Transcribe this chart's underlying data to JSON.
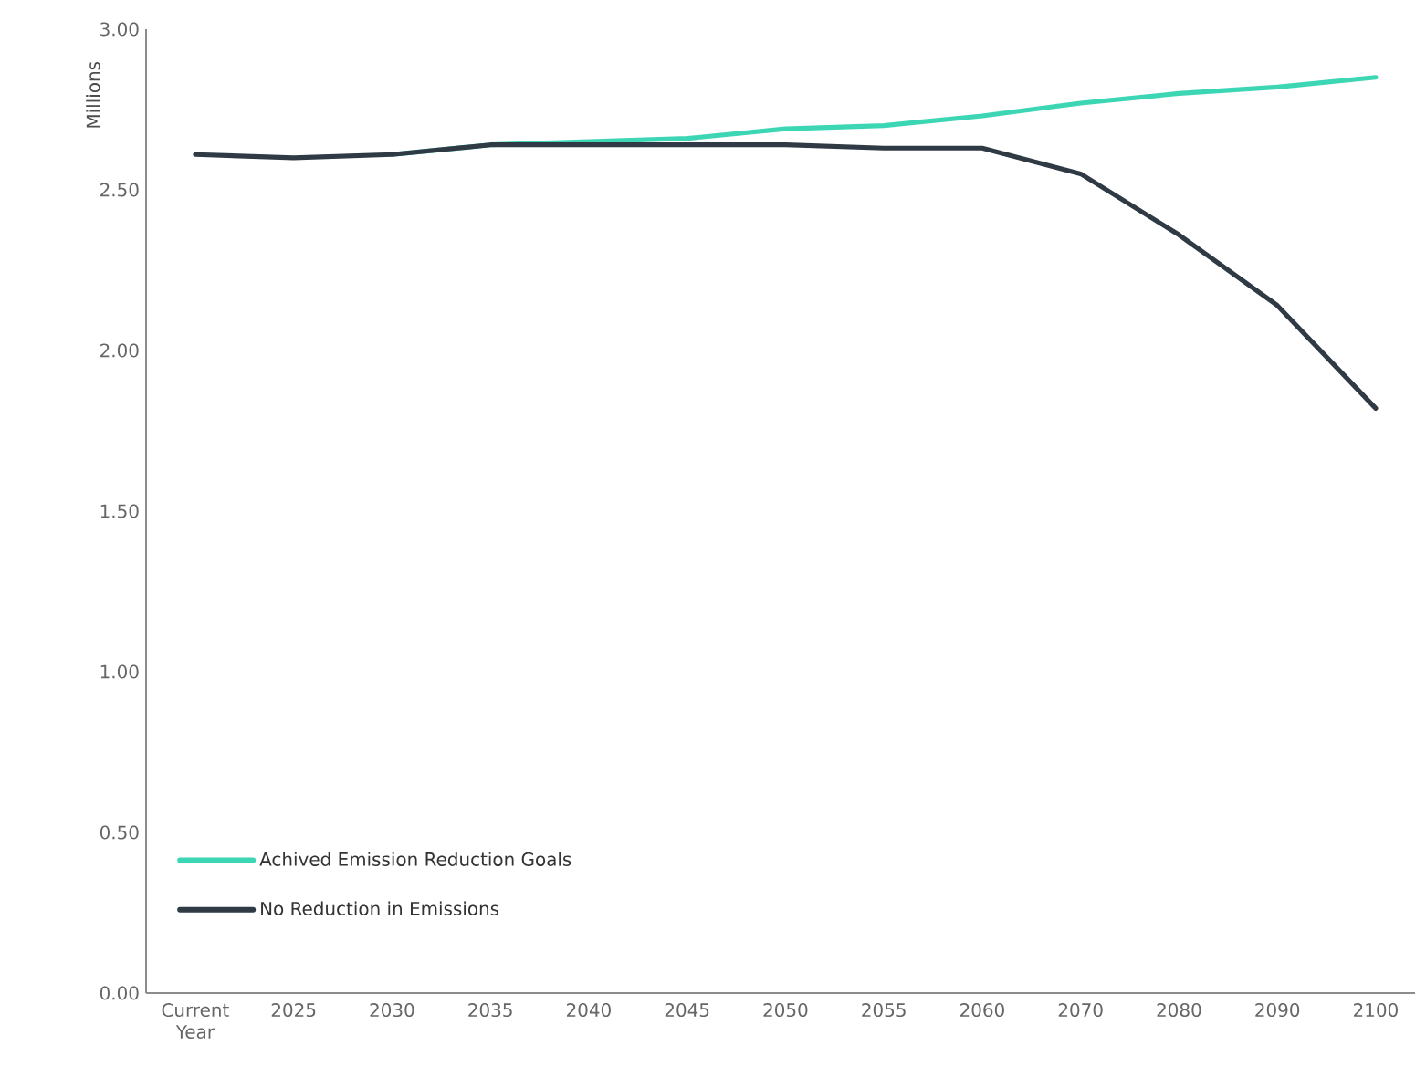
{
  "chart_data": {
    "type": "line",
    "ylabel": "Millions",
    "categories": [
      "Current Year",
      "2025",
      "2030",
      "2035",
      "2040",
      "2045",
      "2050",
      "2055",
      "2060",
      "2070",
      "2080",
      "2090",
      "2100"
    ],
    "series": [
      {
        "name": "Achived Emission Reduction Goals",
        "color": "#3dd6b5",
        "values": [
          null,
          null,
          2.61,
          2.64,
          2.65,
          2.66,
          2.69,
          2.7,
          2.73,
          2.77,
          2.8,
          2.82,
          2.85
        ]
      },
      {
        "name": "No Reduction in Emissions",
        "color": "#2f3a45",
        "values": [
          2.61,
          2.6,
          2.61,
          2.64,
          2.64,
          2.64,
          2.64,
          2.63,
          2.63,
          2.55,
          2.36,
          2.14,
          1.82
        ]
      }
    ],
    "ylim": [
      0,
      3
    ],
    "yticks": [
      {
        "value": 0,
        "label": "0.00"
      },
      {
        "value": 0.5,
        "label": "0.50"
      },
      {
        "value": 1,
        "label": "1.00"
      },
      {
        "value": 1.5,
        "label": "1.50"
      },
      {
        "value": 2,
        "label": "2.00"
      },
      {
        "value": 2.5,
        "label": "2.50"
      },
      {
        "value": 3,
        "label": "3.00"
      }
    ],
    "grid": false,
    "legend": "bottom left",
    "marker": "none",
    "line_style": "solid"
  }
}
